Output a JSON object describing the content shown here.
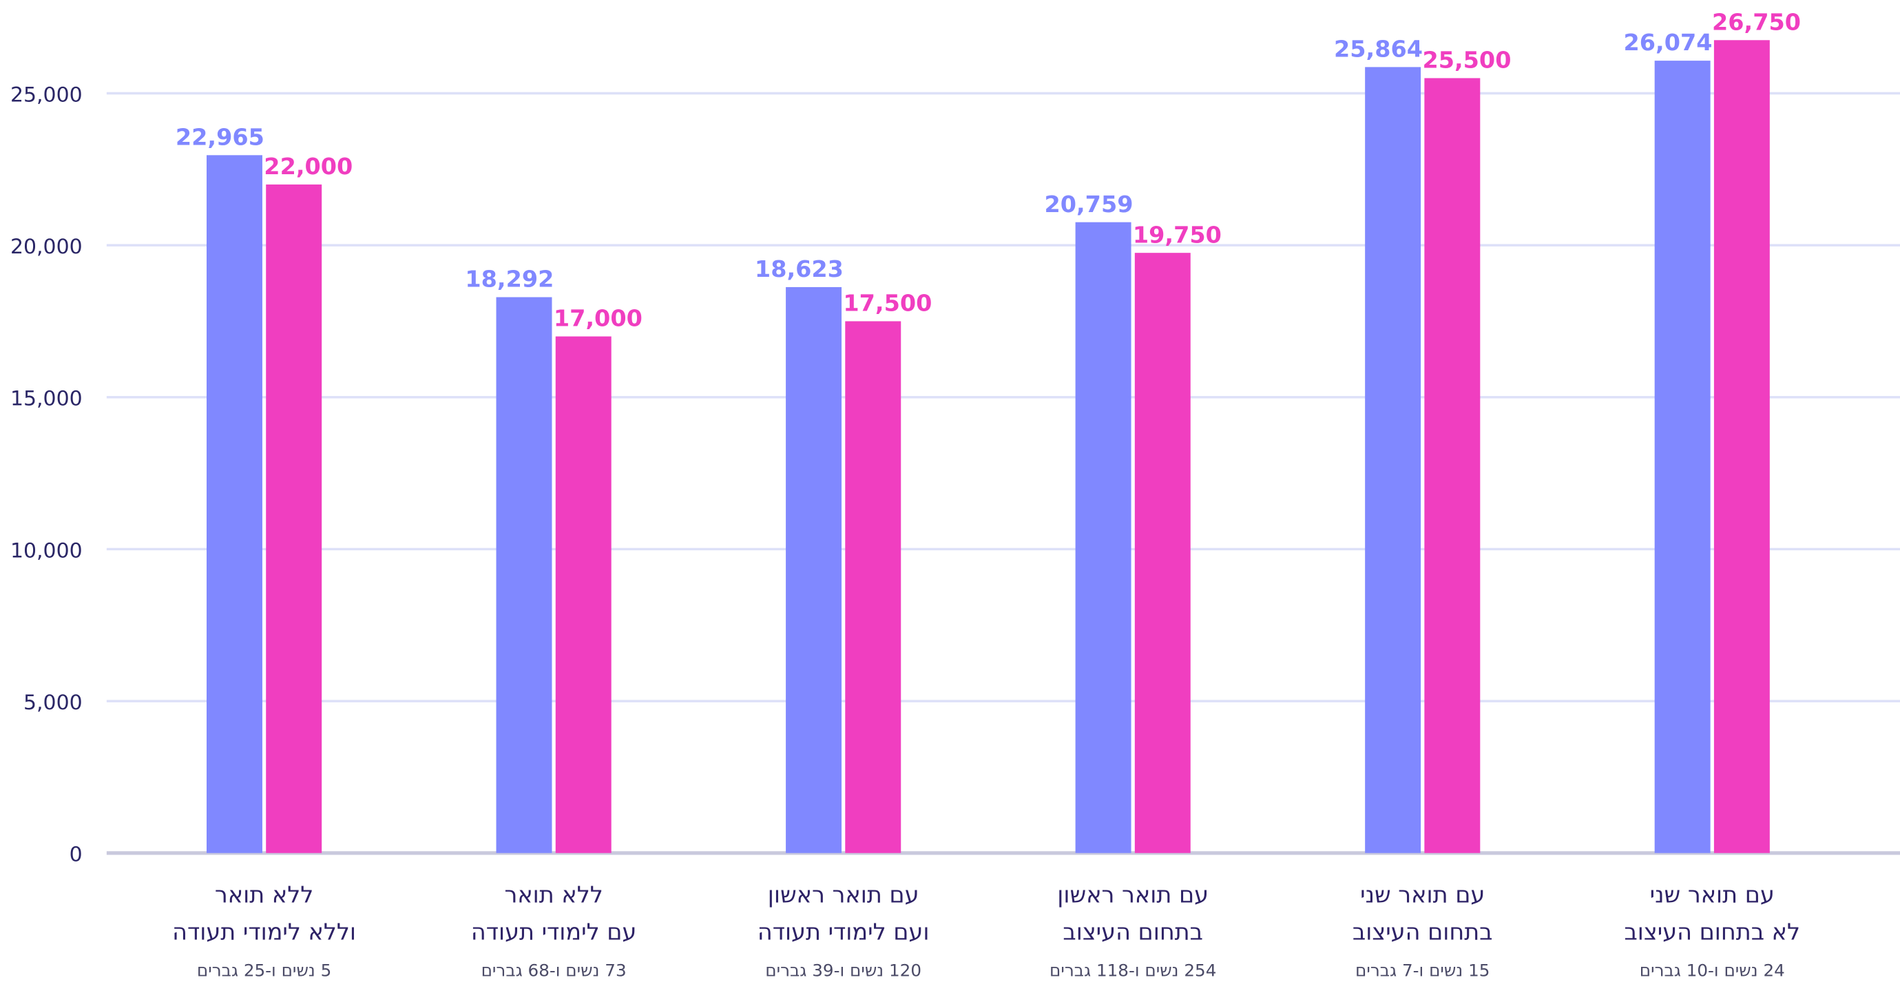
{
  "chart_data": {
    "type": "bar",
    "categories": [
      [
        "ללא תואר",
        "וללא לימודי תעודה"
      ],
      [
        "ללא תואר",
        "עם לימודי תעודה"
      ],
      [
        "עם תואר ראשון",
        "ועם לימודי תעודה"
      ],
      [
        "עם תואר ראשון",
        "בתחום העיצוב"
      ],
      [
        "עם תואר שני",
        "בתחום העיצוב"
      ],
      [
        "עם תואר שני",
        "לא בתחום העיצוב"
      ]
    ],
    "category_notes": [
      "5 נשים ו-25 גברים",
      "73 נשים ו-68 גברים",
      "120 נשים ו-39 גברים",
      "254 נשים ו-118 גברים",
      "15 נשים ו-7 גברים",
      "24 נשים ו-10 גברים"
    ],
    "series": [
      {
        "color": "#8088ff",
        "values": [
          22965,
          18292,
          18623,
          20759,
          25864,
          26074
        ],
        "value_labels": [
          "22,965",
          "18,292",
          "18,623",
          "20,759",
          "25,864",
          "26,074"
        ]
      },
      {
        "color": "#f03ec0",
        "values": [
          22000,
          17000,
          17500,
          19750,
          25500,
          26750
        ],
        "value_labels": [
          "22,000",
          "17,000",
          "17,500",
          "19,750",
          "25,500",
          "26,750"
        ]
      }
    ],
    "ylim": [
      0,
      28000
    ],
    "yticks": [
      0,
      {
        "value": 5000,
        "label": "5,000"
      },
      {
        "value": 10000,
        "label": "10,000"
      },
      {
        "value": 15000,
        "label": "15,000"
      },
      {
        "value": 20000,
        "label": "20,000"
      },
      {
        "value": 25000,
        "label": "25,000"
      }
    ],
    "grid": true
  }
}
